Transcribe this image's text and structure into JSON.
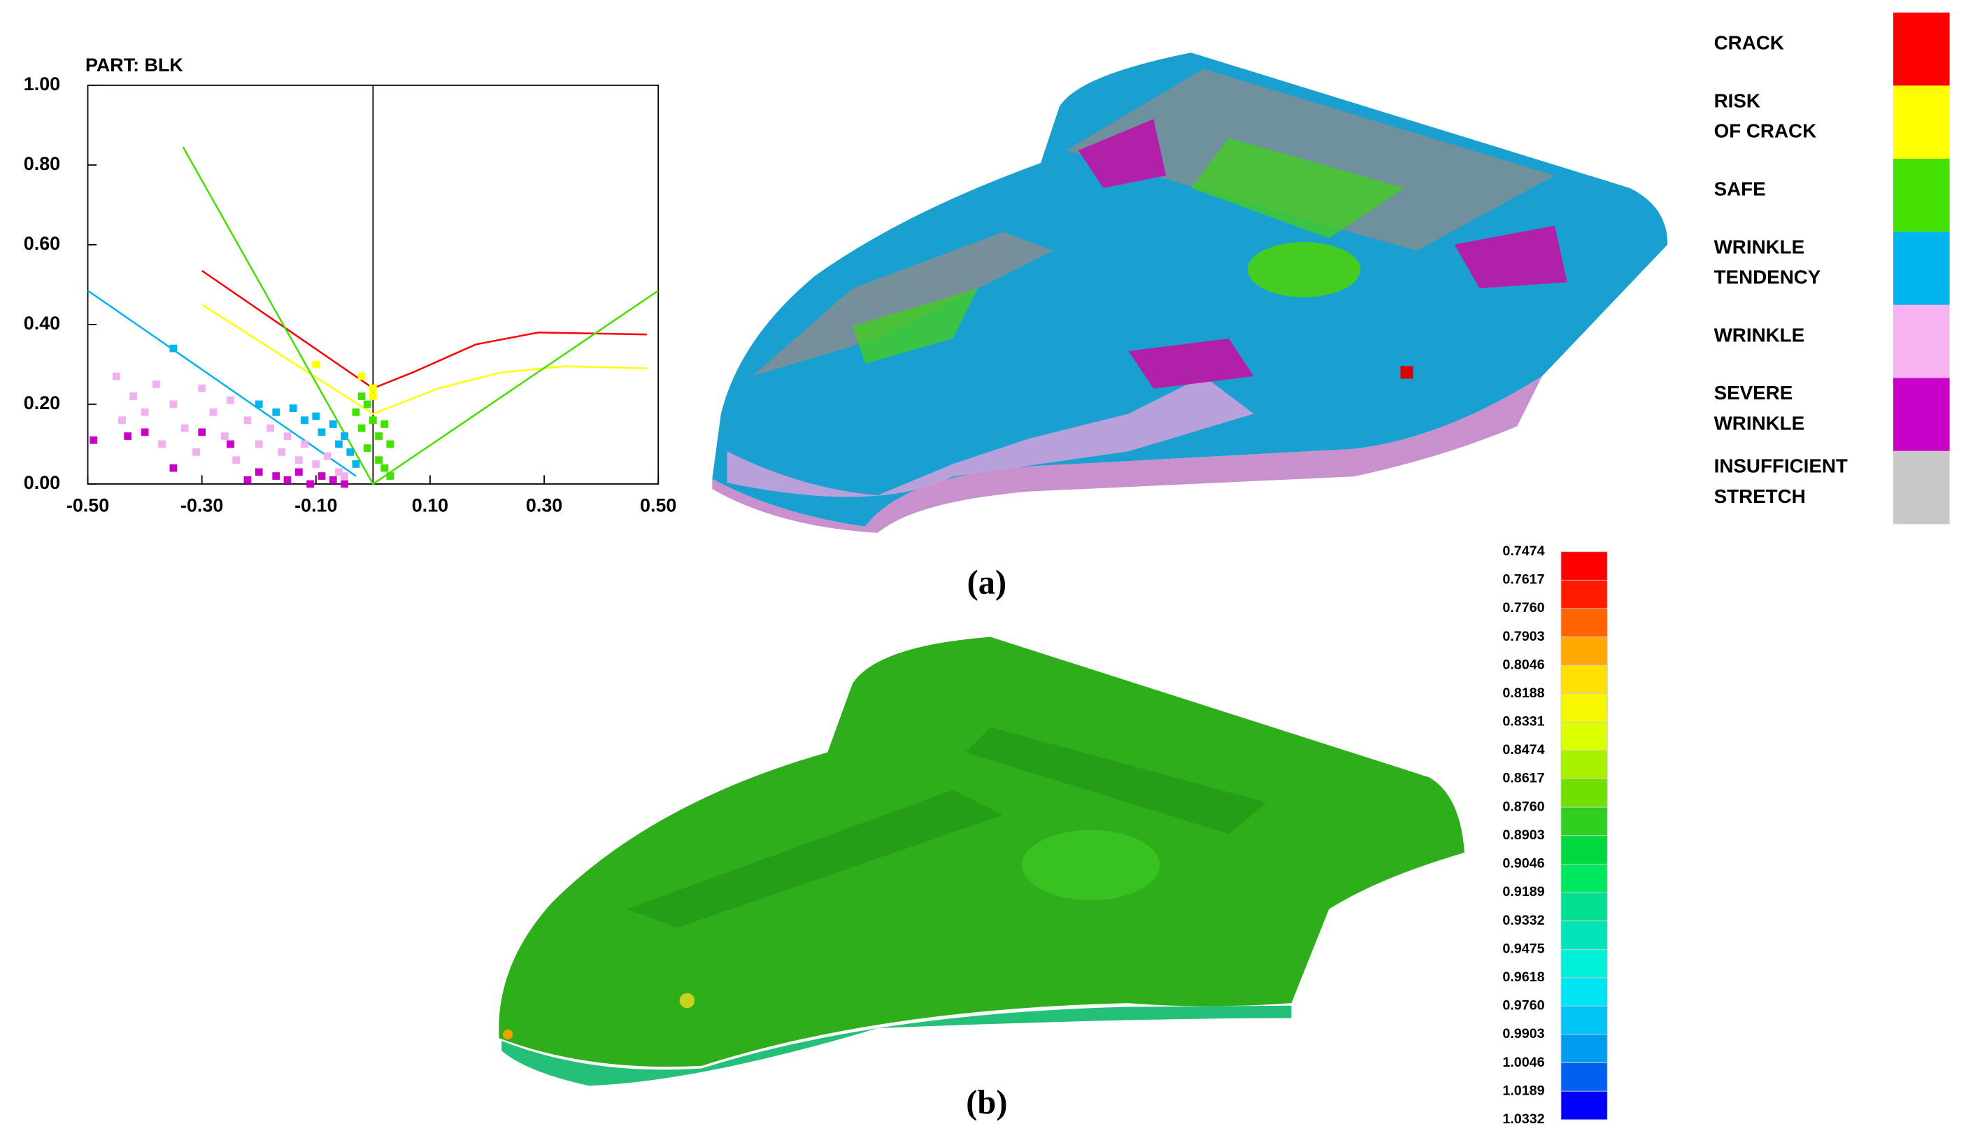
{
  "chart_data": {
    "type": "scatter",
    "title": "PART:  BLK",
    "xlim": [
      -0.5,
      0.5
    ],
    "ylim": [
      0,
      1.0
    ],
    "xticks": [
      {
        "value": -0.5,
        "label": "-0.50"
      },
      {
        "value": -0.3,
        "label": "-0.30"
      },
      {
        "value": -0.1,
        "label": "-0.10"
      },
      {
        "value": 0.1,
        "label": "0.10"
      },
      {
        "value": 0.3,
        "label": "0.30"
      },
      {
        "value": 0.5,
        "label": "0.50"
      }
    ],
    "yticks": [
      {
        "value": 0,
        "label": "0.00"
      },
      {
        "value": 0.2,
        "label": "0.20"
      },
      {
        "value": 0.4,
        "label": "0.40"
      },
      {
        "value": 0.6,
        "label": "0.60"
      },
      {
        "value": 0.8,
        "label": "0.80"
      },
      {
        "value": 1.0,
        "label": "1.00"
      }
    ],
    "series": [
      {
        "color": "#f2b0ee",
        "x": [
          -0.45,
          -0.42,
          -0.4,
          -0.38,
          -0.35,
          -0.33,
          -0.3,
          -0.28,
          -0.26,
          -0.25,
          -0.22,
          -0.2,
          -0.18,
          -0.16,
          -0.15,
          -0.13,
          -0.12,
          -0.1,
          -0.08,
          -0.06,
          -0.44,
          -0.37,
          -0.31,
          -0.24,
          -0.05
        ],
        "values": [
          0.27,
          0.22,
          0.18,
          0.25,
          0.2,
          0.14,
          0.24,
          0.18,
          0.12,
          0.21,
          0.16,
          0.1,
          0.14,
          0.08,
          0.12,
          0.06,
          0.1,
          0.05,
          0.07,
          0.03,
          0.16,
          0.1,
          0.08,
          0.06,
          0.02
        ]
      },
      {
        "color": "#c800c8",
        "x": [
          -0.49,
          -0.43,
          -0.4,
          -0.35,
          -0.3,
          -0.22,
          -0.2,
          -0.17,
          -0.15,
          -0.13,
          -0.11,
          -0.09,
          -0.07,
          -0.05,
          -0.25
        ],
        "values": [
          0.11,
          0.12,
          0.13,
          0.04,
          0.13,
          0.01,
          0.03,
          0.02,
          0.01,
          0.03,
          0.0,
          0.02,
          0.01,
          0.0,
          0.1
        ]
      },
      {
        "color": "#00b4ee",
        "x": [
          -0.2,
          -0.17,
          -0.14,
          -0.12,
          -0.1,
          -0.09,
          -0.07,
          -0.06,
          -0.05,
          -0.04,
          -0.03,
          -0.35
        ],
        "values": [
          0.2,
          0.18,
          0.19,
          0.16,
          0.17,
          0.13,
          0.15,
          0.1,
          0.12,
          0.08,
          0.05,
          0.34
        ]
      },
      {
        "color": "#44e000",
        "x": [
          -0.03,
          -0.02,
          -0.01,
          0.0,
          0.01,
          0.02,
          0.03,
          0.01,
          -0.01,
          0.02,
          0.03,
          -0.02
        ],
        "values": [
          0.18,
          0.14,
          0.2,
          0.16,
          0.12,
          0.15,
          0.1,
          0.06,
          0.09,
          0.04,
          0.02,
          0.22
        ]
      },
      {
        "color": "#ffff00",
        "x": [
          -0.02,
          0.0,
          0.0,
          -0.1
        ],
        "values": [
          0.27,
          0.24,
          0.22,
          0.3
        ]
      }
    ],
    "lines": [
      {
        "color": "#ff0000",
        "x": [
          -0.3,
          0.0,
          0.07,
          0.18,
          0.29,
          0.48
        ],
        "values": [
          0.535,
          0.24,
          0.28,
          0.35,
          0.38,
          0.375
        ]
      },
      {
        "color": "#ffff00",
        "x": [
          -0.3,
          0.0,
          0.115,
          0.225,
          0.335,
          0.48
        ],
        "values": [
          0.45,
          0.176,
          0.24,
          0.28,
          0.295,
          0.29
        ]
      },
      {
        "color": "#44e000",
        "x": [
          -0.333,
          0.0,
          0.5
        ],
        "values": [
          0.845,
          0.0,
          0.485
        ]
      },
      {
        "color": "#00b4ee",
        "x": [
          -0.5,
          -0.03
        ],
        "values": [
          0.485,
          0.02
        ]
      }
    ],
    "legend": [
      {
        "label": [
          "CRACK"
        ],
        "color": "#ff0000"
      },
      {
        "label": [
          "RISK",
          "OF CRACK"
        ],
        "color": "#ffff00"
      },
      {
        "label": [
          "SAFE"
        ],
        "color": "#44e000"
      },
      {
        "label": [
          "WRINKLE",
          "TENDENCY"
        ],
        "color": "#00b4ee"
      },
      {
        "label": [
          "WRINKLE"
        ],
        "color": "#f7b2f2"
      },
      {
        "label": [
          "SEVERE",
          "WRINKLE"
        ],
        "color": "#c800c8"
      },
      {
        "label": [
          "INSUFFICIENT",
          "STRETCH"
        ],
        "color": "#c8c8c8"
      }
    ],
    "panel_labels": [
      "(a)",
      "(b)"
    ],
    "colorbar": {
      "ticks": [
        0.7474,
        0.7617,
        {
          "value": 0.776,
          "label": "0.7760"
        },
        0.7903,
        0.8046,
        0.8188,
        0.8331,
        0.8474,
        0.8617,
        {
          "value": 0.876,
          "label": "0.8760"
        },
        0.8903,
        0.9046,
        0.9189,
        0.9332,
        0.9475,
        0.9618,
        {
          "value": 0.976,
          "label": "0.9760"
        },
        0.9903,
        1.0046,
        1.0189,
        1.0332
      ],
      "colors": [
        "#ff0000",
        "#ff1a00",
        "#ff6400",
        "#ffa800",
        "#ffe000",
        "#f7f700",
        "#d9ff00",
        "#a8f000",
        "#70e000",
        "#30d020",
        "#00d840",
        "#00e860",
        "#00e090",
        "#00e4b8",
        "#00f0d8",
        "#00e4f4",
        "#00c4f4",
        "#009cf0",
        "#0060f0",
        "#0000ff"
      ]
    }
  }
}
